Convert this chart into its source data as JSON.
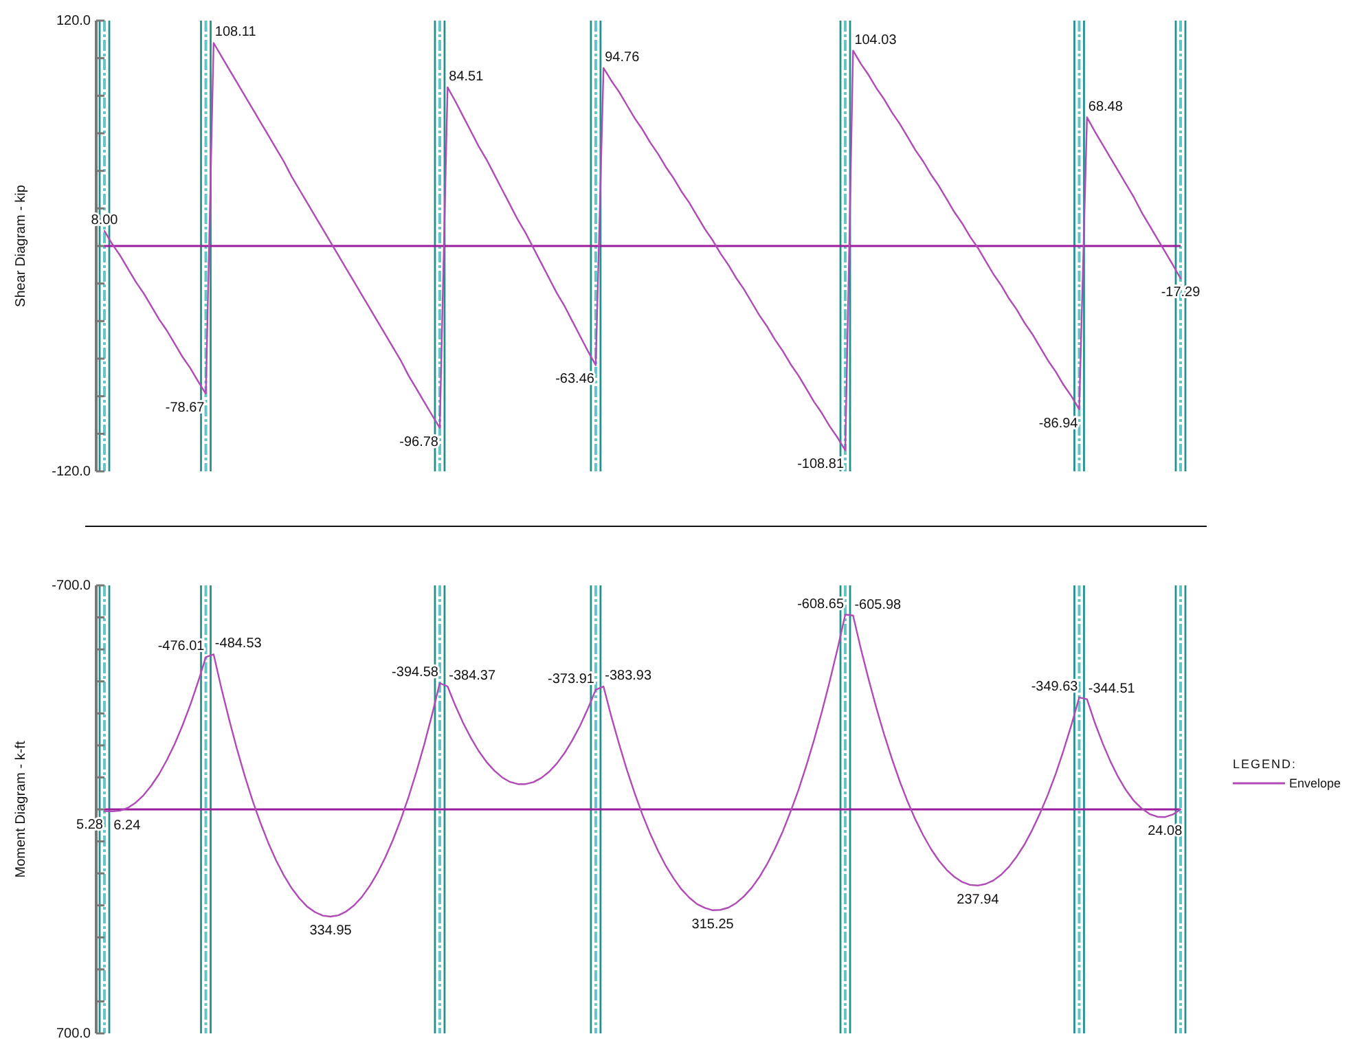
{
  "chart_data": [
    {
      "type": "line",
      "ylabel": "Shear Diagram - kip",
      "categories": [
        null,
        null,
        null,
        null,
        null,
        null,
        null,
        null,
        null,
        null,
        null,
        null,
        null,
        null,
        null,
        null,
        null,
        null,
        null,
        null,
        null,
        null,
        null,
        null,
        null,
        null,
        null,
        null,
        null,
        null,
        null,
        null,
        null,
        null,
        null,
        null,
        null,
        null,
        null,
        null,
        null,
        null,
        null,
        null,
        null,
        null,
        null,
        null,
        null,
        null,
        null,
        null,
        null,
        null,
        null,
        null,
        null,
        null,
        null,
        null,
        null,
        null,
        null,
        null,
        null,
        null,
        null,
        null,
        null,
        null,
        null,
        null,
        null,
        null,
        null,
        null,
        null,
        null,
        null,
        null,
        null,
        null,
        null,
        null,
        null,
        null,
        null,
        null,
        null,
        null,
        null,
        null,
        null,
        null,
        null,
        null,
        null,
        null,
        null,
        null,
        null,
        null,
        null,
        null,
        null,
        null,
        null,
        null,
        null,
        null,
        null,
        null,
        null,
        null,
        null,
        null,
        null,
        null,
        null,
        null,
        null,
        null,
        null,
        null,
        null,
        null,
        null,
        null,
        null,
        null,
        null,
        null,
        null,
        null,
        null,
        null,
        null,
        null,
        null
      ],
      "series": [
        {
          "color": "#b04ab6",
          "values": [
            8,
            1,
            -5,
            -12,
            -19,
            -25,
            -32,
            -39,
            -45,
            -52,
            -59,
            -65,
            -72,
            -78.67,
            108.11,
            101,
            94,
            87,
            80,
            73,
            66,
            59,
            52,
            45,
            37,
            30,
            23,
            16,
            9,
            2,
            -5,
            -12,
            -19,
            -26,
            -33,
            -40,
            -47,
            -54,
            -61,
            -69,
            -76,
            -83,
            -90,
            -96.78,
            84.51,
            77,
            69,
            61,
            53,
            46,
            38,
            30,
            22,
            14,
            7,
            -1,
            -9,
            -17,
            -25,
            -32,
            -40,
            -48,
            -56,
            -63.46,
            94.76,
            88,
            82,
            75,
            68,
            62,
            55,
            49,
            42,
            36,
            29,
            23,
            16,
            9,
            3,
            -4,
            -10,
            -17,
            -23,
            -30,
            -37,
            -43,
            -50,
            -56,
            -63,
            -69,
            -76,
            -83,
            -89,
            -96,
            -102,
            -108.81,
            104.03,
            97,
            91,
            84,
            78,
            71,
            65,
            58,
            51,
            45,
            38,
            32,
            25,
            18,
            12,
            5,
            -1,
            -8,
            -15,
            -21,
            -28,
            -34,
            -41,
            -47,
            -54,
            -61,
            -67,
            -74,
            -80,
            -86.94,
            68.48,
            61,
            54,
            47,
            40,
            33,
            26,
            18,
            11,
            4,
            -3,
            -10,
            -17.29
          ],
          "value_labels": [
            "8.00",
            null,
            null,
            null,
            null,
            null,
            null,
            null,
            null,
            null,
            null,
            null,
            null,
            "-78.67",
            "108.11",
            null,
            null,
            null,
            null,
            null,
            null,
            null,
            null,
            null,
            null,
            null,
            null,
            null,
            null,
            null,
            null,
            null,
            null,
            null,
            null,
            null,
            null,
            null,
            null,
            null,
            null,
            null,
            null,
            "-96.78",
            "84.51",
            null,
            null,
            null,
            null,
            null,
            null,
            null,
            null,
            null,
            null,
            null,
            null,
            null,
            null,
            null,
            null,
            null,
            null,
            "-63.46",
            "94.76",
            null,
            null,
            null,
            null,
            null,
            null,
            null,
            null,
            null,
            null,
            null,
            null,
            null,
            null,
            null,
            null,
            null,
            null,
            null,
            null,
            null,
            null,
            null,
            null,
            null,
            null,
            null,
            null,
            null,
            null,
            "-108.81",
            "104.03",
            null,
            null,
            null,
            null,
            null,
            null,
            null,
            null,
            null,
            null,
            null,
            null,
            null,
            null,
            null,
            null,
            null,
            null,
            null,
            null,
            null,
            null,
            null,
            null,
            null,
            null,
            null,
            null,
            "-86.94",
            "68.48",
            null,
            null,
            null,
            null,
            null,
            null,
            null,
            null,
            null,
            null,
            null,
            "-17.29"
          ]
        }
      ],
      "ylim": [
        -120,
        120
      ],
      "yticks": [
        {
          "value": 120,
          "label": "120.0"
        },
        {
          "value": 100,
          "label": null
        },
        {
          "value": 80,
          "label": null
        },
        {
          "value": 60,
          "label": null
        },
        {
          "value": 40,
          "label": null
        },
        {
          "value": 20,
          "label": null
        },
        {
          "value": 0,
          "label": null
        },
        {
          "value": -20,
          "label": null
        },
        {
          "value": -40,
          "label": null
        },
        {
          "value": -60,
          "label": null
        },
        {
          "value": -80,
          "label": null
        },
        {
          "value": -100,
          "label": null
        },
        {
          "value": -120,
          "label": "-120.0"
        }
      ],
      "tick_labels": "y",
      "ref_lines": [
        {
          "axis": "y",
          "value": 0,
          "color": "#9b1f9b"
        }
      ]
    },
    {
      "type": "line",
      "ylabel": "Moment Diagram - k-ft",
      "legend": "right",
      "legend_title": "LEGEND:",
      "categories": [
        null,
        null,
        null,
        null,
        null,
        null,
        null,
        null,
        null,
        null,
        null,
        null,
        null,
        null,
        null,
        null,
        null,
        null,
        null,
        null,
        null,
        null,
        null,
        null,
        null,
        null,
        null,
        null,
        null,
        null,
        null,
        null,
        null,
        null,
        null,
        null,
        null,
        null,
        null,
        null,
        null,
        null,
        null,
        null,
        null,
        null,
        null,
        null,
        null,
        null,
        null,
        null,
        null,
        null,
        null,
        null,
        null,
        null,
        null,
        null,
        null,
        null,
        null,
        null,
        null,
        null,
        null,
        null,
        null,
        null,
        null,
        null,
        null,
        null,
        null,
        null,
        null,
        null,
        null,
        null,
        null,
        null,
        null,
        null,
        null,
        null,
        null,
        null,
        null,
        null,
        null,
        null,
        null,
        null,
        null,
        null,
        null,
        null,
        null,
        null,
        null,
        null,
        null,
        null,
        null,
        null,
        null,
        null,
        null,
        null,
        null,
        null,
        null,
        null,
        null,
        null,
        null,
        null,
        null,
        null,
        null,
        null,
        null,
        null,
        null,
        null,
        null,
        null,
        null,
        null,
        null,
        null,
        null,
        null,
        null,
        null,
        null,
        null,
        null
      ],
      "series": [
        {
          "name": "Envelope",
          "color": "#b04ab6",
          "values": [
            5.28,
            6.24,
            4,
            -5,
            -21,
            -44,
            -74,
            -110,
            -154,
            -204,
            -262,
            -326,
            -398,
            -476.01,
            -484.53,
            -378,
            -280,
            -188,
            -104,
            -27,
            42,
            104,
            159,
            206,
            246,
            278,
            304,
            321,
            332,
            334.95,
            331,
            319,
            300,
            274,
            240,
            199,
            151,
            95,
            32,
            -39,
            -117,
            -202,
            -295,
            -394.58,
            -384.37,
            -324,
            -270,
            -223,
            -182,
            -148,
            -121,
            -100,
            -86,
            -79,
            -79,
            -85,
            -98,
            -117,
            -143,
            -176,
            -216,
            -262,
            -315,
            -373.91,
            -383.93,
            -290,
            -204,
            -123,
            -50,
            17,
            77,
            130,
            177,
            216,
            250,
            276,
            296,
            308,
            315.25,
            314,
            307,
            293,
            272,
            245,
            211,
            170,
            122,
            68,
            6,
            -61,
            -136,
            -217,
            -305,
            -400,
            -501,
            -608.65,
            -605.98,
            -502,
            -406,
            -316,
            -233,
            -157,
            -87,
            -24,
            32,
            81,
            124,
            160,
            189,
            211,
            227,
            236,
            237.94,
            233,
            222,
            204,
            179,
            147,
            109,
            63,
            11,
            -47,
            -112,
            -185,
            -264,
            -349.63,
            -344.51,
            -271,
            -207,
            -150,
            -101,
            -60,
            -27,
            -3,
            14,
            23,
            24.08,
            16,
            0
          ],
          "value_labels": [
            "5.28",
            "6.24",
            null,
            null,
            null,
            null,
            null,
            null,
            null,
            null,
            null,
            null,
            null,
            "-476.01",
            "-484.53",
            null,
            null,
            null,
            null,
            null,
            null,
            null,
            null,
            null,
            null,
            null,
            null,
            null,
            null,
            "334.95",
            null,
            null,
            null,
            null,
            null,
            null,
            null,
            null,
            null,
            null,
            null,
            null,
            null,
            "-394.58",
            "-384.37",
            null,
            null,
            null,
            null,
            null,
            null,
            null,
            null,
            null,
            null,
            null,
            null,
            null,
            null,
            null,
            null,
            null,
            null,
            "-373.91",
            "-383.93",
            null,
            null,
            null,
            null,
            null,
            null,
            null,
            null,
            null,
            null,
            null,
            null,
            null,
            "315.25",
            null,
            null,
            null,
            null,
            null,
            null,
            null,
            null,
            null,
            null,
            null,
            null,
            null,
            null,
            null,
            null,
            "-608.65",
            "-605.98",
            null,
            null,
            null,
            null,
            null,
            null,
            null,
            null,
            null,
            null,
            null,
            null,
            null,
            null,
            null,
            "237.94",
            null,
            null,
            null,
            null,
            null,
            null,
            null,
            null,
            null,
            null,
            null,
            null,
            "-349.63",
            "-344.51",
            null,
            null,
            null,
            null,
            null,
            null,
            null,
            null,
            null,
            "24.08",
            null,
            null
          ]
        }
      ],
      "ylim": [
        700,
        -700
      ],
      "yticks": [
        {
          "value": -700,
          "label": "-700.0"
        },
        {
          "value": -600,
          "label": null
        },
        {
          "value": -500,
          "label": null
        },
        {
          "value": -400,
          "label": null
        },
        {
          "value": -300,
          "label": null
        },
        {
          "value": -200,
          "label": null
        },
        {
          "value": -100,
          "label": null
        },
        {
          "value": 0,
          "label": null
        },
        {
          "value": 100,
          "label": null
        },
        {
          "value": 200,
          "label": null
        },
        {
          "value": 300,
          "label": null
        },
        {
          "value": 400,
          "label": null
        },
        {
          "value": 500,
          "label": null
        },
        {
          "value": 600,
          "label": null
        },
        {
          "value": 700,
          "label": "700.0"
        }
      ],
      "tick_labels": "y",
      "ref_lines": [
        {
          "axis": "y",
          "value": 0,
          "color": "#9b1f9b"
        }
      ]
    }
  ]
}
